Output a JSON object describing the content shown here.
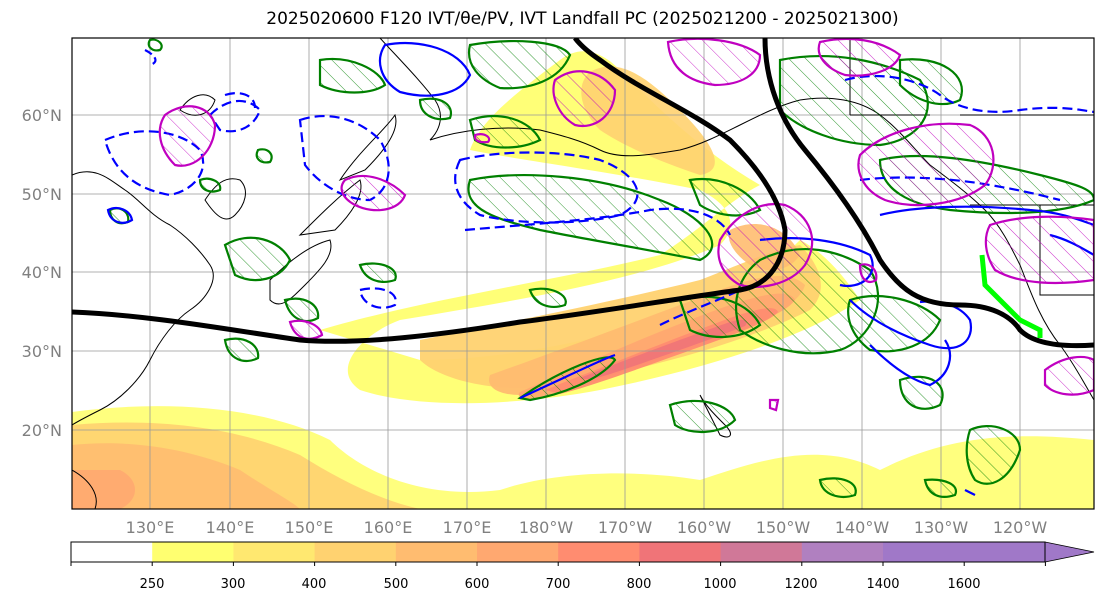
{
  "title": "2025020600 F120 IVT/θe/PV, IVT Landfall PC (2025021200 - 2025021300)",
  "map": {
    "lat_labels": [
      "60°N",
      "50°N",
      "40°N",
      "30°N",
      "20°N"
    ],
    "lon_labels": [
      "130°E",
      "140°E",
      "150°E",
      "160°E",
      "170°E",
      "180°W",
      "170°W",
      "160°W",
      "150°W",
      "140°W",
      "130°W",
      "120°W"
    ],
    "colors": {
      "ivt_fill": [
        "#ffff70",
        "#ffe870",
        "#ffd270",
        "#ffbc70",
        "#ffa870",
        "#ff8c70",
        "#f07478",
        "#d07898",
        "#b080c0",
        "#a078c8"
      ],
      "theta_e_positive": "#0000ff",
      "pv": "#008000",
      "pc_contour": "#c000c0",
      "trough_axis": "#000000",
      "landfall": "#00ff00"
    }
  },
  "colorbar": {
    "ticks": [
      "250",
      "300",
      "400",
      "500",
      "600",
      "700",
      "800",
      "1000",
      "1200",
      "1400",
      "1600"
    ],
    "colors": [
      "#ffffff",
      "#ffff70",
      "#ffe870",
      "#ffd270",
      "#ffbc70",
      "#ffa870",
      "#ff8c70",
      "#f07478",
      "#d07898",
      "#b080c0",
      "#a078c8",
      "#a078c8"
    ]
  }
}
